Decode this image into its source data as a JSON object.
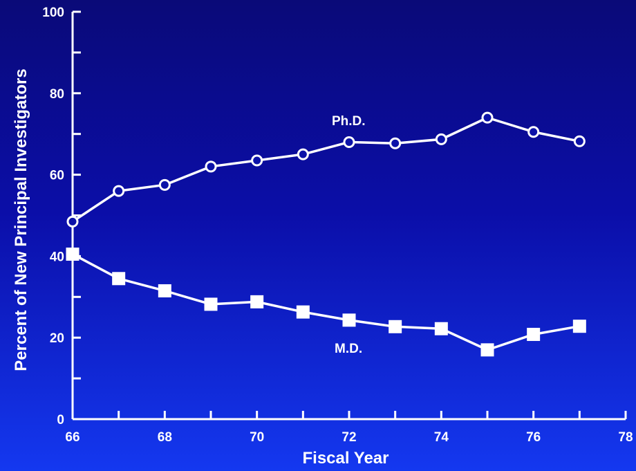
{
  "chart_data": {
    "type": "line",
    "xlabel": "Fiscal Year",
    "ylabel": "Percent of New Principal Investigators",
    "xlim": [
      66,
      78
    ],
    "ylim": [
      0,
      100
    ],
    "x_ticks": [
      66,
      67,
      68,
      69,
      70,
      71,
      72,
      73,
      74,
      75,
      76,
      77,
      78
    ],
    "x_tick_labels": [
      "66",
      "68",
      "70",
      "72",
      "74",
      "76",
      "78"
    ],
    "y_ticks": [
      0,
      10,
      20,
      30,
      40,
      50,
      60,
      70,
      80,
      90,
      100
    ],
    "y_tick_labels": [
      "0",
      "20",
      "40",
      "60",
      "80",
      "100"
    ],
    "grid": false,
    "series": [
      {
        "name": "Ph.D.",
        "marker": "circle-open",
        "x": [
          66,
          67,
          68,
          69,
          70,
          71,
          72,
          73,
          74,
          75,
          76,
          77
        ],
        "values": [
          48.5,
          56,
          57.5,
          62,
          63.5,
          65,
          68,
          67.7,
          68.7,
          74,
          70.5,
          68.2
        ]
      },
      {
        "name": "M.D.",
        "marker": "square-filled",
        "x": [
          66,
          67,
          68,
          69,
          70,
          71,
          72,
          73,
          74,
          75,
          76,
          77
        ],
        "values": [
          40.5,
          34.5,
          31.5,
          28.2,
          28.8,
          26.3,
          24.3,
          22.7,
          22.2,
          17,
          20.8,
          22.8
        ]
      }
    ],
    "colors": {
      "line": "#ffffff",
      "background_top": "#0a0a78",
      "background_bottom": "#1438f0"
    }
  }
}
